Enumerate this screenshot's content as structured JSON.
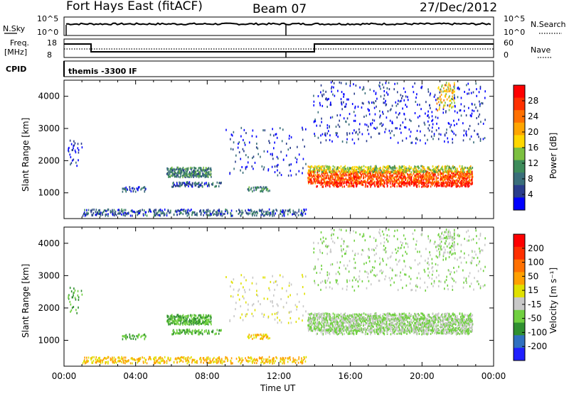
{
  "header": {
    "station": "Fort Hays East (fitACF)",
    "beam": "Beam 07",
    "date": "27/Dec/2012"
  },
  "top_panels": {
    "nsky_label": "N.Sky",
    "nsky_ticks": [
      "10^5",
      "10^0"
    ],
    "nsearch_label": "N.Search",
    "nsearch_ticks": [
      "10^5",
      "10^0"
    ],
    "freq_label": "Freq.",
    "freq_unit": "[MHz]",
    "freq_ticks": [
      "18",
      "8"
    ],
    "nave_label": "Nave",
    "nave_ticks": [
      "60",
      "0"
    ],
    "cpid_label": "CPID",
    "cpid_value": "themis -3300 IF"
  },
  "colors": {
    "power_scale": [
      "#0000ff",
      "#2a3d8c",
      "#3a6e7a",
      "#3e8c5a",
      "#7cc040",
      "#ffd700",
      "#ffa500",
      "#ff7000",
      "#ff3000",
      "#ff0000"
    ],
    "velocity_scale": [
      "#2020ff",
      "#3070c0",
      "#309030",
      "#70d040",
      "#c8c8c8",
      "#e0e000",
      "#ffa000",
      "#ff7000",
      "#ff3000",
      "#ff0000"
    ]
  },
  "chart_data": [
    {
      "type": "heatmap",
      "name": "power",
      "xlabel": "",
      "ylabel": "Slant Range [km]",
      "yticks": [
        "1000",
        "2000",
        "3000",
        "4000"
      ],
      "ylim": [
        200,
        4500
      ],
      "xlim": [
        "00:00",
        "24:00"
      ],
      "colorbar": {
        "label": "Power [dB]",
        "ticks": [
          "4",
          "8",
          "12",
          "16",
          "20",
          "24",
          "28"
        ],
        "range": [
          0,
          30
        ]
      }
    },
    {
      "type": "heatmap",
      "name": "velocity",
      "xlabel": "Time UT",
      "ylabel": "Slant Range [km]",
      "xticks": [
        "00:00",
        "04:00",
        "08:00",
        "12:00",
        "16:00",
        "20:00",
        "00:00"
      ],
      "yticks": [
        "1000",
        "2000",
        "3000",
        "4000"
      ],
      "ylim": [
        200,
        4500
      ],
      "colorbar": {
        "label": "Velocity [m s⁻¹]",
        "ticks": [
          "200",
          "100",
          "50",
          "15",
          "-15",
          "-50",
          "-100",
          "-200"
        ],
        "range": [
          -250,
          250
        ]
      }
    }
  ]
}
